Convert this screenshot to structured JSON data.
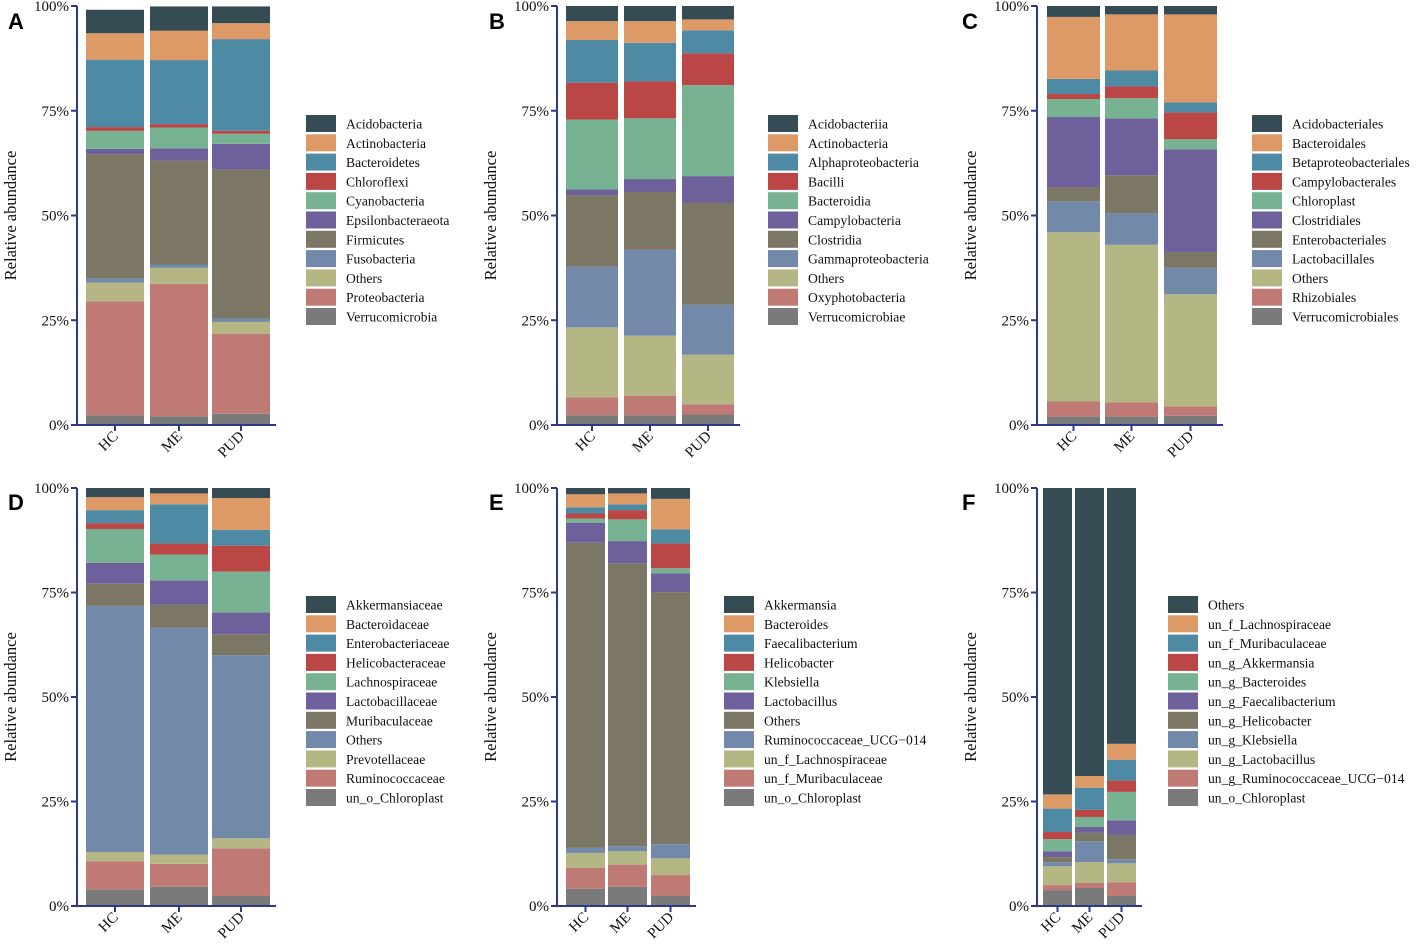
{
  "figure": {
    "colors": {
      "c1": "#354c55",
      "c2": "#dd9a67",
      "c3": "#4f8aa4",
      "c4": "#bb4646",
      "c5": "#77b393",
      "c6": "#6e619b",
      "c7": "#7c7665",
      "c8": "#7389aa",
      "c9": "#b4b784",
      "c10": "#bf7a76",
      "c11": "#7a7a7a",
      "axis": "#2d3a8c"
    }
  },
  "chart_data": [
    {
      "type": "bar",
      "stacked": true,
      "panel": "A",
      "ylabel": "Relative abundance",
      "ylim": [
        0,
        100
      ],
      "yticks": [
        "0%",
        "25%",
        "50%",
        "75%",
        "100%"
      ],
      "categories": [
        "HC",
        "ME",
        "PUD"
      ],
      "series": [
        {
          "name": "Verrucomicrobia",
          "values": [
            2.3,
            2.1,
            2.7
          ]
        },
        {
          "name": "Proteobacteria",
          "values": [
            27.2,
            31.6,
            19.1
          ]
        },
        {
          "name": "Others",
          "values": [
            4.5,
            3.8,
            2.8
          ]
        },
        {
          "name": "Fusobacteria",
          "values": [
            1.0,
            0.8,
            0.8
          ]
        },
        {
          "name": "Firmicutes",
          "values": [
            29.6,
            24.8,
            35.6
          ]
        },
        {
          "name": "Epsilonbacteraeota",
          "values": [
            1.3,
            2.9,
            6.1
          ]
        },
        {
          "name": "Cyanobacteria",
          "values": [
            4.3,
            5.0,
            2.4
          ]
        },
        {
          "name": "Chloroflexi",
          "values": [
            0.9,
            0.8,
            0.7
          ]
        },
        {
          "name": "Bacteroidetes",
          "values": [
            16.1,
            15.3,
            21.9
          ]
        },
        {
          "name": "Actinobacteria",
          "values": [
            6.3,
            7.0,
            3.8
          ]
        },
        {
          "name": "Acidobacteria",
          "values": [
            5.6,
            5.8,
            4.0
          ]
        }
      ]
    },
    {
      "type": "bar",
      "stacked": true,
      "panel": "B",
      "ylabel": "Relative abundance",
      "ylim": [
        0,
        100
      ],
      "yticks": [
        "0%",
        "25%",
        "50%",
        "75%",
        "100%"
      ],
      "categories": [
        "HC",
        "ME",
        "PUD"
      ],
      "series": [
        {
          "name": "Verrucomicrobiae",
          "values": [
            2.3,
            2.3,
            2.5
          ]
        },
        {
          "name": "Oxyphotobacteria",
          "values": [
            4.3,
            4.7,
            2.4
          ]
        },
        {
          "name": "Others",
          "values": [
            16.7,
            14.3,
            11.9
          ]
        },
        {
          "name": "Gammaproteobacteria",
          "values": [
            14.5,
            20.5,
            11.9
          ]
        },
        {
          "name": "Clostridia",
          "values": [
            17.0,
            13.8,
            24.3
          ]
        },
        {
          "name": "Campylobacteria",
          "values": [
            1.4,
            3.1,
            6.4
          ]
        },
        {
          "name": "Bacteroidia",
          "values": [
            16.7,
            14.5,
            21.7
          ]
        },
        {
          "name": "Bacilli",
          "values": [
            8.8,
            8.8,
            7.6
          ]
        },
        {
          "name": "Alphaproteobacteria",
          "values": [
            10.2,
            9.2,
            5.5
          ]
        },
        {
          "name": "Actinobacteria",
          "values": [
            4.5,
            5.2,
            2.6
          ]
        },
        {
          "name": "Acidobacteriia",
          "values": [
            3.6,
            3.6,
            3.2
          ]
        }
      ]
    },
    {
      "type": "bar",
      "stacked": true,
      "panel": "C",
      "ylabel": "Relative abundance",
      "ylim": [
        0,
        100
      ],
      "yticks": [
        "0%",
        "25%",
        "50%",
        "75%",
        "100%"
      ],
      "categories": [
        "HC",
        "ME",
        "PUD"
      ],
      "series": [
        {
          "name": "Verrucomicrobiales",
          "values": [
            2.0,
            2.0,
            2.2
          ]
        },
        {
          "name": "Rhizobiales",
          "values": [
            3.6,
            3.4,
            2.2
          ]
        },
        {
          "name": "Others",
          "values": [
            40.4,
            37.6,
            26.8
          ]
        },
        {
          "name": "Lactobacillales",
          "values": [
            7.4,
            7.6,
            6.3
          ]
        },
        {
          "name": "Enterobacteriales",
          "values": [
            3.4,
            9.0,
            3.8
          ]
        },
        {
          "name": "Clostridiales",
          "values": [
            16.7,
            13.6,
            24.5
          ]
        },
        {
          "name": "Chloroplast",
          "values": [
            4.3,
            4.8,
            2.4
          ]
        },
        {
          "name": "Campylobacterales",
          "values": [
            1.2,
            2.8,
            6.4
          ]
        },
        {
          "name": "Betaproteobacteriales",
          "values": [
            3.6,
            3.8,
            2.4
          ]
        },
        {
          "name": "Bacteroidales",
          "values": [
            14.8,
            13.4,
            21.0
          ]
        },
        {
          "name": "Acidobacteriales",
          "values": [
            2.6,
            2.0,
            2.0
          ]
        }
      ]
    },
    {
      "type": "bar",
      "stacked": true,
      "panel": "D",
      "ylabel": "Relative abundance",
      "ylim": [
        0,
        100
      ],
      "yticks": [
        "0%",
        "25%",
        "50%",
        "75%",
        "100%"
      ],
      "categories": [
        "HC",
        "ME",
        "PUD"
      ],
      "series": [
        {
          "name": "un_o_Chloroplast",
          "values": [
            4.0,
            4.6,
            2.4
          ]
        },
        {
          "name": "Ruminococcaceae",
          "values": [
            6.7,
            5.5,
            11.4
          ]
        },
        {
          "name": "Prevotellaceae",
          "values": [
            2.2,
            2.2,
            2.4
          ]
        },
        {
          "name": "Others",
          "values": [
            58.9,
            54.3,
            43.8
          ]
        },
        {
          "name": "Muribaculaceae",
          "values": [
            5.3,
            5.5,
            5.0
          ]
        },
        {
          "name": "Lactobacillaceae",
          "values": [
            5.0,
            5.8,
            5.2
          ]
        },
        {
          "name": "Lachnospiraceae",
          "values": [
            8.1,
            6.2,
            9.8
          ]
        },
        {
          "name": "Helicobacteraceae",
          "values": [
            1.4,
            2.6,
            6.2
          ]
        },
        {
          "name": "Enterobacteriaceae",
          "values": [
            3.1,
            9.4,
            3.8
          ]
        },
        {
          "name": "Bacteroidaceae",
          "values": [
            3.1,
            2.6,
            7.6
          ]
        },
        {
          "name": "Akkermansiaceae",
          "values": [
            2.2,
            1.3,
            2.4
          ]
        }
      ]
    },
    {
      "type": "bar",
      "stacked": true,
      "panel": "E",
      "ylabel": "Relative abundance",
      "ylim": [
        0,
        100
      ],
      "yticks": [
        "0%",
        "25%",
        "50%",
        "75%",
        "100%"
      ],
      "categories": [
        "HC",
        "ME",
        "PUD"
      ],
      "series": [
        {
          "name": "un_o_Chloroplast",
          "values": [
            4.1,
            4.6,
            2.4
          ]
        },
        {
          "name": "un_f_Muribaculaceae",
          "values": [
            5.0,
            5.3,
            5.0
          ]
        },
        {
          "name": "un_f_Lachnospiraceae",
          "values": [
            3.6,
            3.2,
            4.0
          ]
        },
        {
          "name": "Ruminococcaceae_UCG−014",
          "values": [
            1.2,
            1.2,
            3.4
          ]
        },
        {
          "name": "Others",
          "values": [
            73.0,
            67.7,
            60.3
          ]
        },
        {
          "name": "Lactobacillus",
          "values": [
            4.8,
            5.3,
            4.5
          ]
        },
        {
          "name": "Klebsiella",
          "values": [
            1.0,
            5.2,
            1.2
          ]
        },
        {
          "name": "Helicobacter",
          "values": [
            1.2,
            2.2,
            5.9
          ]
        },
        {
          "name": "Faecalibacterium",
          "values": [
            1.5,
            1.4,
            3.4
          ]
        },
        {
          "name": "Bacteroides",
          "values": [
            3.1,
            2.6,
            7.3
          ]
        },
        {
          "name": "Akkermansia",
          "values": [
            1.5,
            1.3,
            2.6
          ]
        }
      ]
    },
    {
      "type": "bar",
      "stacked": true,
      "panel": "F",
      "ylabel": "Relative abundance",
      "ylim": [
        0,
        100
      ],
      "yticks": [
        "0%",
        "25%",
        "50%",
        "75%",
        "100%"
      ],
      "categories": [
        "HC",
        "ME",
        "PUD"
      ],
      "series": [
        {
          "name": "un_o_Chloroplast",
          "values": [
            3.8,
            4.3,
            2.4
          ]
        },
        {
          "name": "un_g_Ruminococcaceae_UCG−014",
          "values": [
            1.2,
            1.2,
            3.3
          ]
        },
        {
          "name": "un_g_Lactobacillus",
          "values": [
            4.5,
            5.0,
            4.5
          ]
        },
        {
          "name": "un_g_Klebsiella",
          "values": [
            1.0,
            5.0,
            1.0
          ]
        },
        {
          "name": "un_g_Helicobacter",
          "values": [
            1.2,
            2.0,
            5.8
          ]
        },
        {
          "name": "un_g_Faecalibacterium",
          "values": [
            1.4,
            1.4,
            3.5
          ]
        },
        {
          "name": "un_g_Bacteroides",
          "values": [
            2.9,
            2.4,
            6.8
          ]
        },
        {
          "name": "un_g_Akkermansia",
          "values": [
            1.7,
            1.7,
            2.7
          ]
        },
        {
          "name": "un_f_Muribaculaceae",
          "values": [
            5.6,
            5.3,
            5.0
          ]
        },
        {
          "name": "un_f_Lachnospiraceae",
          "values": [
            3.4,
            2.8,
            3.8
          ]
        },
        {
          "name": "Others",
          "values": [
            73.3,
            68.9,
            61.2
          ]
        }
      ]
    }
  ]
}
